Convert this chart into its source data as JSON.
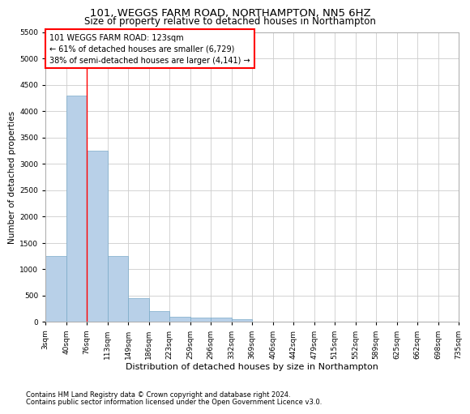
{
  "title1": "101, WEGGS FARM ROAD, NORTHAMPTON, NN5 6HZ",
  "title2": "Size of property relative to detached houses in Northampton",
  "xlabel": "Distribution of detached houses by size in Northampton",
  "ylabel": "Number of detached properties",
  "bar_values": [
    1250,
    4300,
    3250,
    1250,
    450,
    200,
    100,
    75,
    75,
    50,
    0,
    0,
    0,
    0,
    0,
    0,
    0,
    0,
    0,
    0
  ],
  "bar_labels": [
    "3sqm",
    "40sqm",
    "76sqm",
    "113sqm",
    "149sqm",
    "186sqm",
    "223sqm",
    "259sqm",
    "296sqm",
    "332sqm",
    "369sqm",
    "406sqm",
    "442sqm",
    "479sqm",
    "515sqm",
    "552sqm",
    "589sqm",
    "625sqm",
    "662sqm",
    "698sqm",
    "735sqm"
  ],
  "bar_color": "#b8d0e8",
  "bar_edge_color": "#7aaac8",
  "annotation_text_line1": "101 WEGGS FARM ROAD: 123sqm",
  "annotation_text_line2": "← 61% of detached houses are smaller (6,729)",
  "annotation_text_line3": "38% of semi-detached houses are larger (4,141) →",
  "vline_color": "red",
  "vline_x": 2.0,
  "ylim": [
    0,
    5500
  ],
  "yticks": [
    0,
    500,
    1000,
    1500,
    2000,
    2500,
    3000,
    3500,
    4000,
    4500,
    5000,
    5500
  ],
  "footnote1": "Contains HM Land Registry data © Crown copyright and database right 2024.",
  "footnote2": "Contains public sector information licensed under the Open Government Licence v3.0.",
  "title1_fontsize": 9.5,
  "title2_fontsize": 8.5,
  "xlabel_fontsize": 8,
  "ylabel_fontsize": 7.5,
  "tick_fontsize": 6.5,
  "annotation_fontsize": 7,
  "footnote_fontsize": 6,
  "grid_color": "#cccccc"
}
